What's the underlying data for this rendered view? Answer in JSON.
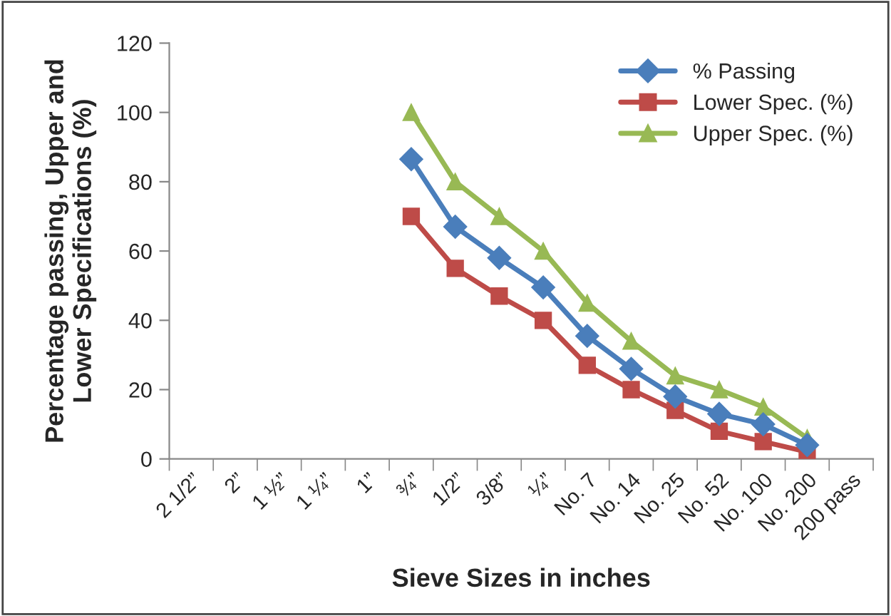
{
  "chart_data": {
    "type": "line",
    "xlabel": "Sieve Sizes in inches",
    "ylabel": "Percentage passing, Upper and\nLower Specifications (%)",
    "categories": [
      "2 1/2”",
      "2”",
      "1 ½”",
      "1 ¼”",
      "1”",
      "¾”",
      "1/2”",
      "3/8”",
      "¼”",
      "No. 7",
      "No. 14",
      "No. 25",
      "No. 52",
      "No. 100",
      "No. 200",
      "200 pass"
    ],
    "series": [
      {
        "name": "% Passing",
        "color": "#4a7ebb",
        "marker": "diamond",
        "values": [
          null,
          null,
          null,
          null,
          null,
          86.5,
          67,
          58,
          49.5,
          35.5,
          26,
          18,
          13,
          10,
          4,
          null
        ]
      },
      {
        "name": "Lower Spec. (%)",
        "color": "#be4b48",
        "marker": "square",
        "values": [
          null,
          null,
          null,
          null,
          null,
          70,
          55,
          47,
          40,
          27,
          20,
          14,
          8,
          5,
          2,
          null
        ]
      },
      {
        "name": "Upper Spec. (%)",
        "color": "#98b954",
        "marker": "triangle",
        "values": [
          null,
          null,
          null,
          null,
          null,
          100,
          80,
          70,
          60,
          45,
          34,
          24,
          20,
          15,
          6,
          null
        ]
      }
    ],
    "ylim": [
      0,
      120
    ],
    "yticks": [
      0,
      20,
      40,
      60,
      80,
      100,
      120
    ],
    "legend": "top right",
    "grid": false,
    "line_style": "solid"
  }
}
